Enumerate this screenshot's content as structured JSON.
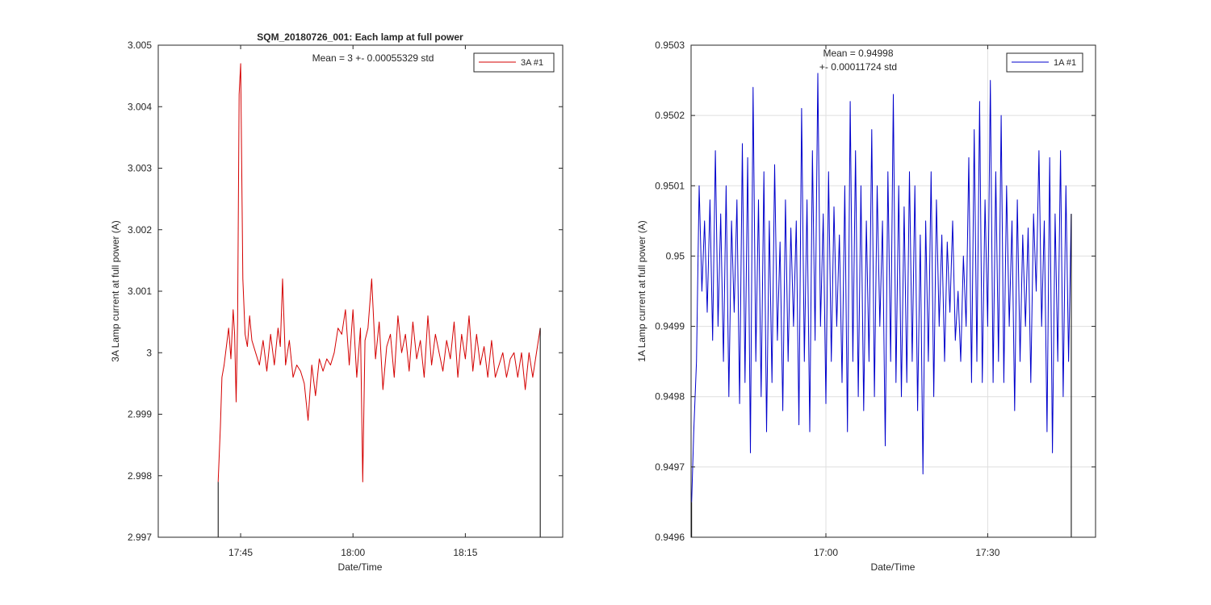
{
  "chart_data": [
    {
      "type": "line",
      "title": "SQM_20180726_001: Each lamp at full power",
      "xlabel": "Date/Time",
      "ylabel": "3A Lamp current at full power (A)",
      "grid": false,
      "ylim": [
        2.997,
        3.005
      ],
      "xlim_minutes": [
        -11,
        43
      ],
      "xticks": [
        {
          "minute": 0,
          "label": "17:45"
        },
        {
          "minute": 15,
          "label": "18:00"
        },
        {
          "minute": 30,
          "label": "18:15"
        }
      ],
      "yticks": [
        {
          "value": 2.997,
          "label": "2.997"
        },
        {
          "value": 2.998,
          "label": "2.998"
        },
        {
          "value": 2.999,
          "label": "2.999"
        },
        {
          "value": 3.0,
          "label": "3"
        },
        {
          "value": 3.001,
          "label": "3.001"
        },
        {
          "value": 3.002,
          "label": "3.002"
        },
        {
          "value": 3.003,
          "label": "3.003"
        },
        {
          "value": 3.004,
          "label": "3.004"
        },
        {
          "value": 3.005,
          "label": "3.005"
        }
      ],
      "annotation": "Mean = 3 +- 0.00055329 std",
      "legend_position": "top-right",
      "series": [
        {
          "name": "3A #1",
          "color": "#d40000",
          "x": [
            -3.0,
            -2.7,
            -2.5,
            -2.2,
            -1.9,
            -1.6,
            -1.3,
            -1.0,
            -0.8,
            -0.6,
            -0.4,
            -0.2,
            0.0,
            0.3,
            0.6,
            0.9,
            1.2,
            1.5,
            2.0,
            2.5,
            3.0,
            3.5,
            4.0,
            4.5,
            5.0,
            5.3,
            5.6,
            6.0,
            6.5,
            7.0,
            7.5,
            8.0,
            8.5,
            9.0,
            9.5,
            10.0,
            10.5,
            11.0,
            11.5,
            12.0,
            12.5,
            13.0,
            13.5,
            14.0,
            14.5,
            15.0,
            15.5,
            16.0,
            16.3,
            16.6,
            17.0,
            17.5,
            18.0,
            18.5,
            19.0,
            19.5,
            20.0,
            20.5,
            21.0,
            21.5,
            22.0,
            22.5,
            23.0,
            23.5,
            24.0,
            24.5,
            25.0,
            25.5,
            26.0,
            26.5,
            27.0,
            27.5,
            28.0,
            28.5,
            29.0,
            29.5,
            30.0,
            30.5,
            31.0,
            31.5,
            32.0,
            32.5,
            33.0,
            33.5,
            34.0,
            34.5,
            35.0,
            35.5,
            36.0,
            36.5,
            37.0,
            37.5,
            38.0,
            38.5,
            39.0,
            39.5,
            40.0
          ],
          "y": [
            2.9979,
            2.9988,
            2.9996,
            2.9998,
            3.0001,
            3.0004,
            2.9999,
            3.0007,
            3.0003,
            2.9992,
            3.0005,
            3.0042,
            3.0047,
            3.0012,
            3.0003,
            3.0001,
            3.0006,
            3.0002,
            3.0,
            2.9998,
            3.0002,
            2.9997,
            3.0003,
            2.9998,
            3.0004,
            3.0001,
            3.0012,
            2.9998,
            3.0002,
            2.9996,
            2.9998,
            2.9997,
            2.9995,
            2.9989,
            2.9998,
            2.9993,
            2.9999,
            2.9997,
            2.9999,
            2.9998,
            3.0,
            3.0004,
            3.0003,
            3.0007,
            2.9998,
            3.0007,
            2.9996,
            3.0004,
            2.9979,
            3.0002,
            3.0004,
            3.0012,
            2.9999,
            3.0005,
            2.9994,
            3.0001,
            3.0003,
            2.9996,
            3.0006,
            3.0,
            3.0003,
            2.9997,
            3.0005,
            2.9999,
            3.0002,
            2.9996,
            3.0006,
            2.9998,
            3.0003,
            3.0,
            2.9997,
            3.0002,
            2.9999,
            3.0005,
            2.9996,
            3.0003,
            2.9999,
            3.0006,
            2.9997,
            3.0003,
            2.9998,
            3.0001,
            2.9996,
            3.0002,
            2.9996,
            2.9998,
            3.0,
            2.9996,
            2.9999,
            3.0,
            2.9996,
            3.0,
            2.9994,
            3.0,
            2.9996,
            3.0,
            3.0004
          ]
        }
      ]
    },
    {
      "type": "line",
      "title": "",
      "xlabel": "Date/Time",
      "ylabel": "1A Lamp current at full power (A)",
      "grid": true,
      "ylim": [
        0.9496,
        0.9503
      ],
      "xlim_minutes": [
        -25,
        50
      ],
      "xticks": [
        {
          "minute": 0,
          "label": "17:00"
        },
        {
          "minute": 30,
          "label": "17:30"
        }
      ],
      "yticks": [
        {
          "value": 0.9496,
          "label": "0.9496"
        },
        {
          "value": 0.9497,
          "label": "0.9497"
        },
        {
          "value": 0.9498,
          "label": "0.9498"
        },
        {
          "value": 0.9499,
          "label": "0.9499"
        },
        {
          "value": 0.95,
          "label": "0.95"
        },
        {
          "value": 0.9501,
          "label": "0.9501"
        },
        {
          "value": 0.9502,
          "label": "0.9502"
        },
        {
          "value": 0.9503,
          "label": "0.9503"
        }
      ],
      "annotation": [
        "Mean = 0.94998",
        "+- 0.00011724 std"
      ],
      "legend_position": "top-right",
      "series": [
        {
          "name": "1A #1",
          "color": "#0000cc",
          "x": [
            -24.9,
            -24.5,
            -24.0,
            -23.5,
            -23.0,
            -22.5,
            -22.0,
            -21.5,
            -21.0,
            -20.5,
            -20.0,
            -19.5,
            -19.0,
            -18.5,
            -18.0,
            -17.5,
            -17.0,
            -16.5,
            -16.0,
            -15.5,
            -15.0,
            -14.5,
            -14.0,
            -13.5,
            -13.0,
            -12.5,
            -12.0,
            -11.5,
            -11.0,
            -10.5,
            -10.0,
            -9.5,
            -9.0,
            -8.5,
            -8.0,
            -7.5,
            -7.0,
            -6.5,
            -6.0,
            -5.5,
            -5.0,
            -4.5,
            -4.0,
            -3.5,
            -3.0,
            -2.5,
            -2.0,
            -1.5,
            -1.0,
            -0.5,
            0.0,
            0.5,
            1.0,
            1.5,
            2.0,
            2.5,
            3.0,
            3.5,
            4.0,
            4.5,
            5.0,
            5.5,
            6.0,
            6.5,
            7.0,
            7.5,
            8.0,
            8.5,
            9.0,
            9.5,
            10.0,
            10.5,
            11.0,
            11.5,
            12.0,
            12.5,
            13.0,
            13.5,
            14.0,
            14.5,
            15.0,
            15.5,
            16.0,
            16.5,
            17.0,
            17.5,
            18.0,
            18.5,
            19.0,
            19.5,
            20.0,
            20.5,
            21.0,
            21.5,
            22.0,
            22.5,
            23.0,
            23.5,
            24.0,
            24.5,
            25.0,
            25.5,
            26.0,
            26.5,
            27.0,
            27.5,
            28.0,
            28.5,
            29.0,
            29.5,
            30.0,
            30.5,
            31.0,
            31.5,
            32.0,
            32.5,
            33.0,
            33.5,
            34.0,
            34.5,
            35.0,
            35.5,
            36.0,
            36.5,
            37.0,
            37.5,
            38.0,
            38.5,
            39.0,
            39.5,
            40.0,
            40.5,
            41.0,
            41.5,
            42.0,
            42.5,
            43.0,
            43.5,
            44.0,
            44.5,
            45.0,
            45.5
          ],
          "y": [
            0.94965,
            0.94975,
            0.94985,
            0.9501,
            0.94995,
            0.95005,
            0.94992,
            0.95008,
            0.94988,
            0.95015,
            0.9499,
            0.95006,
            0.94985,
            0.9501,
            0.9498,
            0.95005,
            0.94992,
            0.95008,
            0.94979,
            0.95016,
            0.94982,
            0.95014,
            0.94972,
            0.95024,
            0.94985,
            0.95008,
            0.9498,
            0.95012,
            0.94975,
            0.95005,
            0.94982,
            0.95013,
            0.94988,
            0.95002,
            0.94978,
            0.95008,
            0.94985,
            0.95004,
            0.9499,
            0.95005,
            0.94976,
            0.95021,
            0.94985,
            0.95008,
            0.94975,
            0.95015,
            0.94988,
            0.95026,
            0.9499,
            0.95006,
            0.94979,
            0.95012,
            0.94985,
            0.95007,
            0.9499,
            0.95003,
            0.94982,
            0.9501,
            0.94975,
            0.95022,
            0.94985,
            0.95015,
            0.9498,
            0.9501,
            0.94978,
            0.95005,
            0.94985,
            0.95018,
            0.9498,
            0.9501,
            0.9499,
            0.95005,
            0.94973,
            0.95012,
            0.94985,
            0.95023,
            0.94982,
            0.9501,
            0.9498,
            0.95007,
            0.94982,
            0.95012,
            0.94985,
            0.9501,
            0.94978,
            0.95003,
            0.94969,
            0.95005,
            0.94985,
            0.95012,
            0.9498,
            0.95008,
            0.9499,
            0.95003,
            0.94985,
            0.95002,
            0.94992,
            0.95005,
            0.94988,
            0.94995,
            0.94985,
            0.95,
            0.9499,
            0.95014,
            0.94982,
            0.95018,
            0.94985,
            0.95022,
            0.94982,
            0.95008,
            0.9499,
            0.95025,
            0.94982,
            0.95012,
            0.94985,
            0.9502,
            0.94982,
            0.9501,
            0.9499,
            0.95005,
            0.94978,
            0.95008,
            0.94985,
            0.95003,
            0.9499,
            0.95004,
            0.94982,
            0.95006,
            0.94995,
            0.95015,
            0.9499,
            0.95005,
            0.94975,
            0.95014,
            0.94972,
            0.95006,
            0.94985,
            0.95015,
            0.9498,
            0.9501,
            0.94985,
            0.95006
          ]
        }
      ]
    }
  ]
}
